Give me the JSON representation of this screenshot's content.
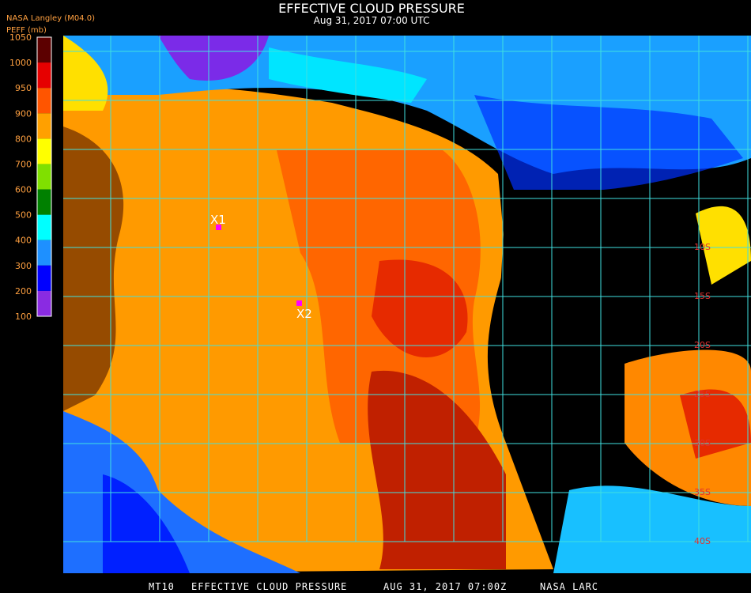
{
  "header": {
    "title": "EFFECTIVE CLOUD PRESSURE",
    "subtitle": "Aug 31, 2017 07:00 UTC",
    "source": "NASA Langley (M04.0)"
  },
  "legend": {
    "label": "PEFF (mb)",
    "ticks": [
      1050,
      1000,
      950,
      900,
      800,
      700,
      600,
      500,
      400,
      300,
      200,
      100
    ],
    "colors": [
      "#5c0000",
      "#e60000",
      "#ff5500",
      "#ffa000",
      "#ffff00",
      "#80e000",
      "#008000",
      "#00ffff",
      "#1e90ff",
      "#0000ff",
      "#8a2be2"
    ]
  },
  "markers": [
    {
      "label": "X1"
    },
    {
      "label": "X2"
    }
  ],
  "latitude_labels": [
    "10S",
    "15S",
    "20S",
    "25S",
    "30S",
    "35S",
    "40S"
  ],
  "footer": [
    "MT10",
    "EFFECTIVE CLOUD PRESSURE",
    "AUG 31, 2017 07:00Z",
    "NASA LARC"
  ]
}
